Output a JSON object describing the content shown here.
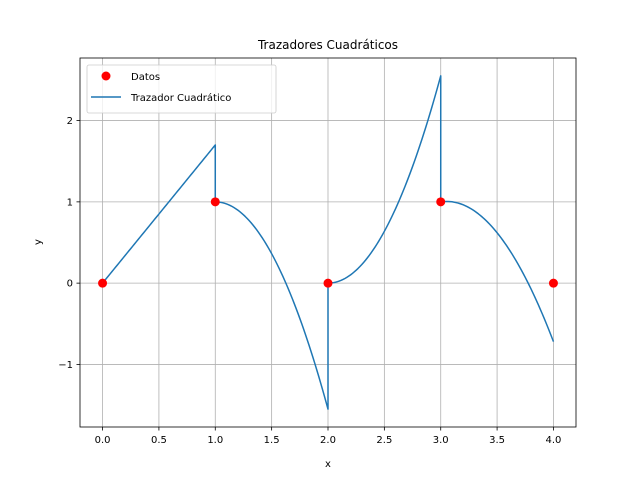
{
  "chart_data": {
    "type": "line",
    "title": "Trazadores Cuadráticos",
    "xlabel": "x",
    "ylabel": "y",
    "xlim": [
      -0.2,
      4.2
    ],
    "ylim": [
      -1.77,
      2.77
    ],
    "xticks": [
      0.0,
      0.5,
      1.0,
      1.5,
      2.0,
      2.5,
      3.0,
      3.5,
      4.0
    ],
    "xtick_labels": [
      "0.0",
      "0.5",
      "1.0",
      "1.5",
      "2.0",
      "2.5",
      "3.0",
      "3.5",
      "4.0"
    ],
    "yticks": [
      -1,
      0,
      1,
      2
    ],
    "ytick_labels": [
      "−1",
      "0",
      "1",
      "2"
    ],
    "grid": true,
    "legend_position": "top-left",
    "series": [
      {
        "name": "Datos",
        "kind": "scatter",
        "color": "#ff0000",
        "x": [
          0,
          1,
          2,
          3,
          4
        ],
        "y": [
          0,
          1,
          0,
          1,
          0
        ]
      },
      {
        "name": "Trazador Cuadrático",
        "kind": "line",
        "color": "#1f77b4",
        "segments": [
          {
            "x_range": [
              0,
              1
            ],
            "a": 0,
            "b": 1.7,
            "c": 0
          },
          {
            "x_range": [
              1,
              2
            ],
            "a": 1,
            "b": 0,
            "c": -2.55
          },
          {
            "x_range": [
              2,
              3
            ],
            "a": 0,
            "b": 0,
            "c": 2.55
          },
          {
            "x_range": [
              3,
              4
            ],
            "a": 1,
            "b": 0.2,
            "c": -1.92
          }
        ]
      }
    ]
  }
}
